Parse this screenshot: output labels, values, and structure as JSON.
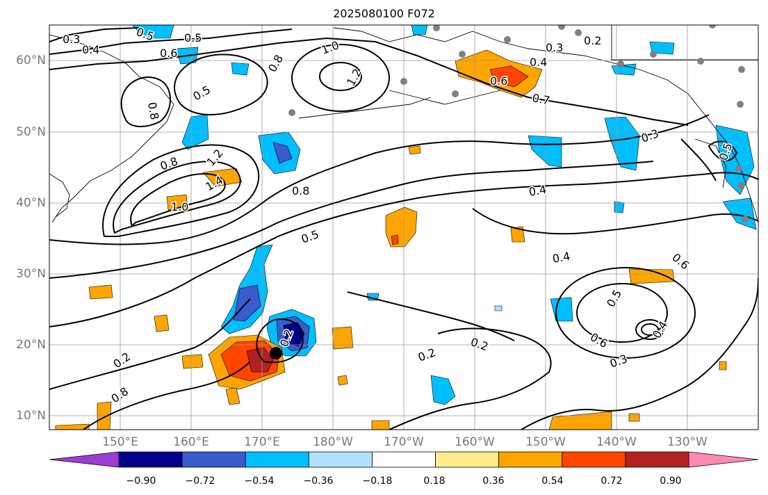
{
  "title": "2025080100 F072",
  "lat_labels": [
    "60°N",
    "50°N",
    "40°N",
    "30°N",
    "20°N",
    "10°N"
  ],
  "lon_labels": [
    "150°E",
    "160°E",
    "170°E",
    "180°W",
    "170°W",
    "160°W",
    "150°W",
    "140°W",
    "130°W"
  ],
  "colorbar": {
    "ticks": [
      "−0.90",
      "−0.72",
      "−0.54",
      "−0.36",
      "−0.18",
      "0.18",
      "0.36",
      "0.54",
      "0.72",
      "0.90"
    ],
    "colors": [
      "#9b3fd4",
      "#00008b",
      "#3a5ccc",
      "#00bfff",
      "#b0e2ff",
      "#ffffff",
      "#ffec8b",
      "#ffa500",
      "#ff4500",
      "#b22222",
      "#ff8ab0"
    ]
  },
  "contour_labels": [
    "0.3",
    "0.4",
    "0.5",
    "0.5",
    "0.6",
    "0.8",
    "0.5",
    "1.0",
    "1.2",
    "0.8",
    "0.4",
    "0.3",
    "0.2",
    "0.6",
    "0.7",
    "0.8",
    "1.2",
    "1.4",
    "1.0",
    "0.8",
    "0.5",
    "0.4",
    "0.4",
    "0.3",
    "0.6",
    "0.5",
    "0.6",
    "0.4",
    "0.3",
    "0.2",
    "0.2",
    "0.2",
    "0.8",
    "0.2",
    "0.5"
  ],
  "legend": {}
}
